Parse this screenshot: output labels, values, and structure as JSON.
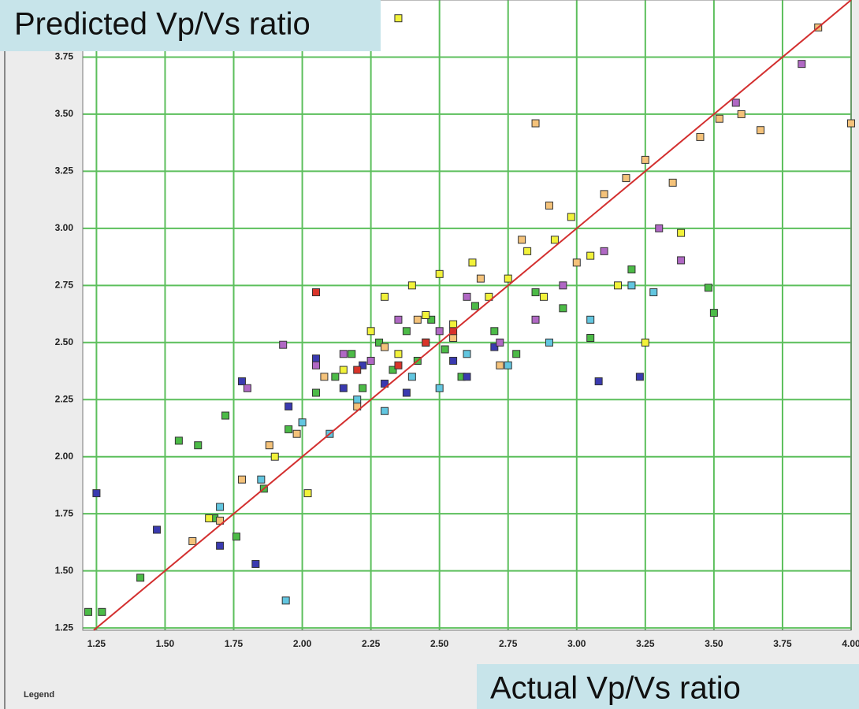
{
  "chart_data": {
    "type": "scatter",
    "title": "Predicted Vp/Vs ratio",
    "x_label": "Actual Vp/Vs ratio",
    "legend_label": "Legend",
    "xlim": [
      1.2,
      4.0
    ],
    "ylim": [
      1.24,
      4.0
    ],
    "xticks": [
      1.25,
      {
        "value": 1.5,
        "label": "1.50"
      },
      1.75,
      {
        "value": 2.0,
        "label": "2.00"
      },
      2.25,
      {
        "value": 2.5,
        "label": "2.50"
      },
      2.75,
      {
        "value": 3.0,
        "label": "3.00"
      },
      3.25,
      {
        "value": 3.5,
        "label": "3.50"
      },
      3.75,
      {
        "value": 4.0,
        "label": "4.00"
      }
    ],
    "yticks": [
      1.25,
      {
        "value": 1.5,
        "label": "1.50"
      },
      1.75,
      {
        "value": 2.0,
        "label": "2.00"
      },
      2.25,
      {
        "value": 2.5,
        "label": "2.50"
      },
      2.75,
      {
        "value": 3.0,
        "label": "3.00"
      },
      3.25,
      {
        "value": 3.5,
        "label": "3.50"
      },
      3.75
    ],
    "grid": true,
    "grid_color": "#5cbf5c",
    "diagonal": {
      "color": "#d32f2f",
      "x": [
        1.24,
        4.0
      ],
      "values": [
        1.24,
        4.0
      ]
    },
    "series": [
      {
        "color": "#4cbb47",
        "x": [
          1.22,
          1.27,
          1.41,
          1.55,
          1.62,
          1.68,
          1.72,
          1.76,
          1.86,
          1.95,
          2.05,
          2.12,
          2.18,
          2.22,
          2.28,
          2.33,
          2.38,
          2.42,
          2.47,
          2.52,
          2.58,
          2.63,
          2.7,
          2.78,
          2.85,
          2.95,
          3.05,
          3.2,
          3.5,
          3.48
        ],
        "values": [
          1.32,
          1.32,
          1.47,
          2.07,
          2.05,
          1.73,
          2.18,
          1.65,
          1.86,
          2.12,
          2.28,
          2.35,
          2.45,
          2.3,
          2.5,
          2.38,
          2.55,
          2.42,
          2.6,
          2.47,
          2.35,
          2.66,
          2.55,
          2.45,
          2.72,
          2.65,
          2.52,
          2.82,
          2.63,
          2.74
        ]
      },
      {
        "color": "#f2f23a",
        "x": [
          1.66,
          1.9,
          2.02,
          2.15,
          2.25,
          2.3,
          2.35,
          2.4,
          2.45,
          2.5,
          2.55,
          2.62,
          2.68,
          2.75,
          2.82,
          2.88,
          2.92,
          2.98,
          3.05,
          3.15,
          3.25,
          3.38,
          2.35
        ],
        "values": [
          1.73,
          2.0,
          1.84,
          2.38,
          2.55,
          2.7,
          2.45,
          2.75,
          2.62,
          2.8,
          2.58,
          2.85,
          2.7,
          2.78,
          2.9,
          2.7,
          2.95,
          3.05,
          2.88,
          2.75,
          2.5,
          2.98,
          3.92
        ]
      },
      {
        "color": "#f4c27a",
        "x": [
          1.6,
          1.7,
          1.78,
          1.88,
          1.98,
          2.08,
          2.2,
          2.3,
          2.42,
          2.55,
          2.65,
          2.72,
          2.8,
          2.9,
          3.0,
          3.1,
          3.18,
          3.25,
          3.35,
          3.45,
          3.52,
          3.6,
          3.67,
          3.88,
          4.0,
          2.85
        ],
        "values": [
          1.63,
          1.72,
          1.9,
          2.05,
          2.1,
          2.35,
          2.22,
          2.48,
          2.6,
          2.52,
          2.78,
          2.4,
          2.95,
          3.1,
          2.85,
          3.15,
          3.22,
          3.3,
          3.2,
          3.4,
          3.48,
          3.5,
          3.43,
          3.88,
          3.46,
          3.46
        ]
      },
      {
        "color": "#3a3ab0",
        "x": [
          1.25,
          1.47,
          1.7,
          1.78,
          1.83,
          1.95,
          2.05,
          2.15,
          2.22,
          2.3,
          2.38,
          2.45,
          2.55,
          2.6,
          2.7,
          3.08,
          3.23
        ],
        "values": [
          1.84,
          1.68,
          1.61,
          2.33,
          1.53,
          2.22,
          2.43,
          2.3,
          2.4,
          2.32,
          2.28,
          2.5,
          2.42,
          2.35,
          2.48,
          2.33,
          2.35
        ]
      },
      {
        "color": "#62c6e0",
        "x": [
          1.7,
          1.85,
          1.94,
          2.0,
          2.1,
          2.2,
          2.3,
          2.4,
          2.5,
          2.6,
          2.75,
          2.9,
          3.05,
          3.2,
          3.28
        ],
        "values": [
          1.78,
          1.9,
          1.37,
          2.15,
          2.1,
          2.25,
          2.2,
          2.35,
          2.3,
          2.45,
          2.4,
          2.5,
          2.6,
          2.75,
          2.72
        ]
      },
      {
        "color": "#b068c4",
        "x": [
          1.8,
          1.93,
          2.05,
          2.15,
          2.25,
          2.35,
          2.5,
          2.6,
          2.72,
          2.85,
          2.95,
          3.1,
          3.3,
          3.38,
          3.58,
          3.82
        ],
        "values": [
          2.3,
          2.49,
          2.4,
          2.45,
          2.42,
          2.6,
          2.55,
          2.7,
          2.5,
          2.6,
          2.75,
          2.9,
          3.0,
          2.86,
          3.55,
          3.72
        ]
      },
      {
        "color": "#d9342a",
        "x": [
          2.05,
          2.2,
          2.35,
          2.45,
          2.55
        ],
        "values": [
          2.72,
          2.38,
          2.4,
          2.5,
          2.55
        ]
      }
    ]
  }
}
